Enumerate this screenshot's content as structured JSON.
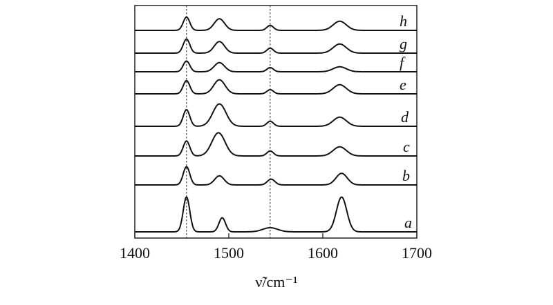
{
  "chart_data": {
    "type": "line",
    "xlim": [
      1400,
      1700
    ],
    "x_ticks": [
      1400,
      1500,
      1600,
      1700
    ],
    "x_tick_labels": [
      "1400",
      "1500",
      "1600",
      "1700"
    ],
    "xlabel": "ν̃/cm⁻¹",
    "ylabel": "",
    "grid": false,
    "reference_lines_x": [
      1455,
      1544
    ],
    "series": [
      {
        "name": "h",
        "peaks": [
          {
            "x": 1455,
            "h": 0.8,
            "w": 3.5
          },
          {
            "x": 1490,
            "h": 0.7,
            "w": 5.5
          },
          {
            "x": 1544,
            "h": 0.3,
            "w": 3.5
          },
          {
            "x": 1618,
            "h": 0.55,
            "w": 7
          }
        ]
      },
      {
        "name": "g",
        "peaks": [
          {
            "x": 1455,
            "h": 0.85,
            "w": 3.5
          },
          {
            "x": 1490,
            "h": 0.7,
            "w": 5.5
          },
          {
            "x": 1544,
            "h": 0.3,
            "w": 3.5
          },
          {
            "x": 1618,
            "h": 0.55,
            "w": 7
          }
        ]
      },
      {
        "name": "f",
        "peaks": [
          {
            "x": 1455,
            "h": 0.65,
            "w": 3.5
          },
          {
            "x": 1490,
            "h": 0.55,
            "w": 5.5
          },
          {
            "x": 1544,
            "h": 0.25,
            "w": 3.5
          },
          {
            "x": 1618,
            "h": 0.3,
            "w": 7
          }
        ]
      },
      {
        "name": "e",
        "peaks": [
          {
            "x": 1455,
            "h": 0.8,
            "w": 3.5
          },
          {
            "x": 1490,
            "h": 0.85,
            "w": 6
          },
          {
            "x": 1544,
            "h": 0.25,
            "w": 3.5
          },
          {
            "x": 1618,
            "h": 0.55,
            "w": 7
          }
        ]
      },
      {
        "name": "d",
        "peaks": [
          {
            "x": 1455,
            "h": 1.0,
            "w": 3.5
          },
          {
            "x": 1490,
            "h": 1.35,
            "w": 7
          },
          {
            "x": 1544,
            "h": 0.3,
            "w": 3.5
          },
          {
            "x": 1618,
            "h": 0.55,
            "w": 7
          }
        ]
      },
      {
        "name": "c",
        "peaks": [
          {
            "x": 1455,
            "h": 0.9,
            "w": 3.5
          },
          {
            "x": 1489,
            "h": 1.4,
            "w": 7
          },
          {
            "x": 1544,
            "h": 0.3,
            "w": 3.5
          },
          {
            "x": 1618,
            "h": 0.55,
            "w": 7
          }
        ]
      },
      {
        "name": "b",
        "peaks": [
          {
            "x": 1455,
            "h": 1.1,
            "w": 3.5
          },
          {
            "x": 1490,
            "h": 0.55,
            "w": 5
          },
          {
            "x": 1545,
            "h": 0.35,
            "w": 4
          },
          {
            "x": 1620,
            "h": 0.7,
            "w": 6
          }
        ]
      },
      {
        "name": "a",
        "peaks": [
          {
            "x": 1455,
            "h": 2.1,
            "w": 3.5
          },
          {
            "x": 1493,
            "h": 0.85,
            "w": 3.5
          },
          {
            "x": 1544,
            "h": 0.25,
            "w": 8
          },
          {
            "x": 1620,
            "h": 2.1,
            "w": 5.5
          }
        ]
      }
    ]
  }
}
